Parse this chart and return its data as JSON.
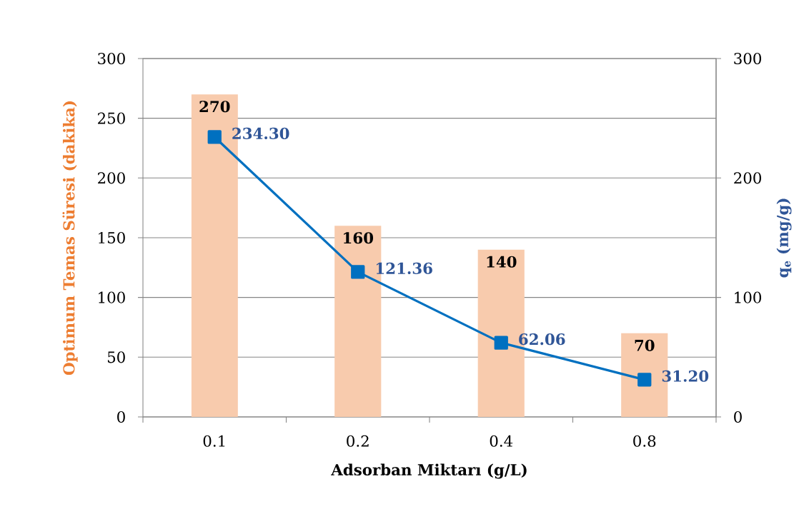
{
  "chart_data": {
    "type": "bar",
    "xlabel": "Adsorban Miktarı (g/L)",
    "ylabel": "Optimum Temas Süresi (dakika)",
    "y2label": "q$_{e}$ (mg/g)",
    "categories": [
      "0.1",
      "0.2",
      "0.4",
      "0.8"
    ],
    "series": [
      {
        "color": "#f8cbad",
        "values": [
          270,
          160,
          140,
          70
        ],
        "value_labels": [
          "270",
          "160",
          "140",
          "70"
        ]
      },
      {
        "type": "line",
        "axis": "y2",
        "color": "#0070c0",
        "values": [
          234.3,
          121.36,
          62.06,
          31.2
        ],
        "value_labels": [
          "234.30",
          "121.36",
          "62.06",
          "31.20"
        ]
      }
    ],
    "ylim": [
      0,
      300
    ],
    "yticks": [
      0,
      50,
      100,
      150,
      200,
      250,
      300
    ],
    "y2lim": [
      0,
      300
    ],
    "y2ticks": [
      0,
      100,
      200,
      300
    ],
    "grid": "y",
    "marker": "square",
    "line_style": "solid"
  }
}
